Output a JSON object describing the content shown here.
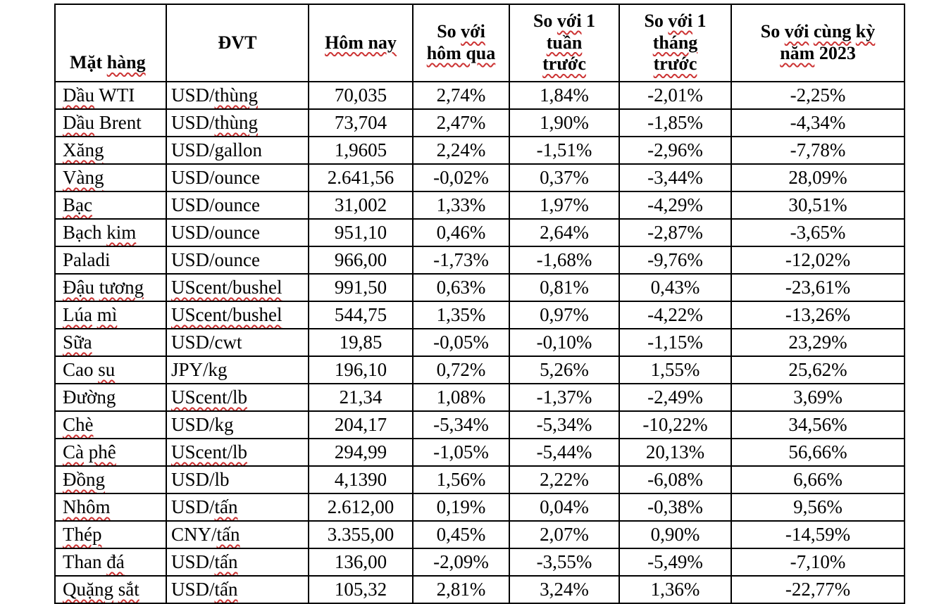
{
  "styles": {
    "squiggle_color": "#cc3333",
    "border_color": "#000000",
    "text_color": "#000000",
    "background": "#ffffff"
  },
  "table": {
    "columns": [
      {
        "id": "item",
        "field": "item",
        "lines": [
          [
            [
              "Mặt ",
              0
            ],
            [
              "hàng",
              1
            ]
          ]
        ]
      },
      {
        "id": "unit",
        "field": "unit",
        "lines": [
          [
            [
              "ĐVT",
              0
            ]
          ]
        ]
      },
      {
        "id": "today",
        "field": "today",
        "lines": [
          [
            [
              "Hôm nay",
              1
            ]
          ]
        ]
      },
      {
        "id": "vs-yesterday",
        "field": "vs_yesterday",
        "lines": [
          [
            [
              "So ",
              0
            ],
            [
              "với",
              1
            ]
          ],
          [
            [
              "hôm qua",
              1
            ]
          ]
        ]
      },
      {
        "id": "vs-week",
        "field": "vs_week",
        "lines": [
          [
            [
              "So ",
              0
            ],
            [
              "với",
              1
            ],
            [
              " 1",
              0
            ]
          ],
          [
            [
              "tuần",
              1
            ]
          ],
          [
            [
              "trước",
              1
            ]
          ]
        ]
      },
      {
        "id": "vs-month",
        "field": "vs_month",
        "lines": [
          [
            [
              "So ",
              0
            ],
            [
              "với",
              1
            ],
            [
              " 1",
              0
            ]
          ],
          [
            [
              "tháng",
              1
            ]
          ],
          [
            [
              "trước",
              1
            ]
          ]
        ]
      },
      {
        "id": "vs-2023",
        "field": "vs_2023",
        "lines": [
          [
            [
              "So ",
              0
            ],
            [
              "với",
              1
            ],
            [
              " ",
              0
            ],
            [
              "cùng",
              1
            ],
            [
              " ",
              0
            ],
            [
              "kỳ",
              1
            ]
          ],
          [
            [
              "năm",
              1
            ],
            [
              " 2023",
              0
            ]
          ]
        ]
      }
    ],
    "rows": [
      {
        "item": [
          [
            "Dầu",
            1
          ],
          [
            " WTI",
            0
          ]
        ],
        "unit": [
          [
            "USD/",
            0
          ],
          [
            "thùng",
            1
          ]
        ],
        "today": "70,035",
        "vs_yesterday": "2,74%",
        "vs_week": "1,84%",
        "vs_month": "-2,01%",
        "vs_2023": "-2,25%"
      },
      {
        "item": [
          [
            "Dầu",
            1
          ],
          [
            " Brent",
            0
          ]
        ],
        "unit": [
          [
            "USD/",
            0
          ],
          [
            "thùng",
            1
          ]
        ],
        "today": "73,704",
        "vs_yesterday": "2,47%",
        "vs_week": "1,90%",
        "vs_month": "-1,85%",
        "vs_2023": "-4,34%"
      },
      {
        "item": [
          [
            "Xăng",
            1
          ]
        ],
        "unit": [
          [
            "USD/gallon",
            0
          ]
        ],
        "today": "1,9605",
        "vs_yesterday": "2,24%",
        "vs_week": "-1,51%",
        "vs_month": "-2,96%",
        "vs_2023": "-7,78%"
      },
      {
        "item": [
          [
            "Vàng",
            1
          ]
        ],
        "unit": [
          [
            "USD/ounce",
            0
          ]
        ],
        "today": "2.641,56",
        "vs_yesterday": "-0,02%",
        "vs_week": "0,37%",
        "vs_month": "-3,44%",
        "vs_2023": "28,09%"
      },
      {
        "item": [
          [
            "Bạc",
            1
          ]
        ],
        "unit": [
          [
            "USD/ounce",
            0
          ]
        ],
        "today": "31,002",
        "vs_yesterday": "1,33%",
        "vs_week": "1,97%",
        "vs_month": "-4,29%",
        "vs_2023": "30,51%"
      },
      {
        "item": [
          [
            "Bạch ",
            0
          ],
          [
            "kim",
            1
          ]
        ],
        "unit": [
          [
            "USD/ounce",
            0
          ]
        ],
        "today": "951,10",
        "vs_yesterday": "0,46%",
        "vs_week": "2,64%",
        "vs_month": "-2,87%",
        "vs_2023": "-3,65%"
      },
      {
        "item": [
          [
            "Paladi",
            0
          ]
        ],
        "unit": [
          [
            "USD/ounce",
            0
          ]
        ],
        "today": "966,00",
        "vs_yesterday": "-1,73%",
        "vs_week": "-1,68%",
        "vs_month": "-9,76%",
        "vs_2023": "-12,02%"
      },
      {
        "item": [
          [
            "Đậu",
            1
          ],
          [
            " ",
            0
          ],
          [
            "tương",
            1
          ]
        ],
        "unit": [
          [
            "UScent/bushel",
            1
          ]
        ],
        "today": "991,50",
        "vs_yesterday": "0,63%",
        "vs_week": "0,81%",
        "vs_month": "0,43%",
        "vs_2023": "-23,61%"
      },
      {
        "item": [
          [
            "Lúa",
            1
          ],
          [
            " ",
            0
          ],
          [
            "mì",
            1
          ]
        ],
        "unit": [
          [
            "UScent/bushel",
            1
          ]
        ],
        "today": "544,75",
        "vs_yesterday": "1,35%",
        "vs_week": "0,97%",
        "vs_month": "-4,22%",
        "vs_2023": "-13,26%"
      },
      {
        "item": [
          [
            "Sữa",
            1
          ]
        ],
        "unit": [
          [
            "USD/cwt",
            0
          ]
        ],
        "today": "19,85",
        "vs_yesterday": "-0,05%",
        "vs_week": "-0,10%",
        "vs_month": "-1,15%",
        "vs_2023": "23,29%"
      },
      {
        "item": [
          [
            "Cao ",
            0
          ],
          [
            "su",
            1
          ]
        ],
        "unit": [
          [
            "JPY/kg",
            0
          ]
        ],
        "today": "196,10",
        "vs_yesterday": "0,72%",
        "vs_week": "5,26%",
        "vs_month": "1,55%",
        "vs_2023": "25,62%"
      },
      {
        "item": [
          [
            "Đường",
            0
          ]
        ],
        "unit": [
          [
            "UScent/lb",
            1
          ]
        ],
        "today": "21,34",
        "vs_yesterday": "1,08%",
        "vs_week": "-1,37%",
        "vs_month": "-2,49%",
        "vs_2023": "3,69%"
      },
      {
        "item": [
          [
            "Chè",
            1
          ]
        ],
        "unit": [
          [
            "USD/kg",
            0
          ]
        ],
        "today": "204,17",
        "vs_yesterday": "-5,34%",
        "vs_week": "-5,34%",
        "vs_month": "-10,22%",
        "vs_2023": "34,56%"
      },
      {
        "item": [
          [
            "Cà",
            1
          ],
          [
            " ",
            0
          ],
          [
            "phê",
            1
          ]
        ],
        "unit": [
          [
            "UScent/lb",
            1
          ]
        ],
        "today": "294,99",
        "vs_yesterday": "-1,05%",
        "vs_week": "-5,44%",
        "vs_month": "20,13%",
        "vs_2023": "56,66%"
      },
      {
        "item": [
          [
            "Đồng",
            1
          ]
        ],
        "unit": [
          [
            "USD/lb",
            0
          ]
        ],
        "today": "4,1390",
        "vs_yesterday": "1,56%",
        "vs_week": "2,22%",
        "vs_month": "-6,08%",
        "vs_2023": "6,66%"
      },
      {
        "item": [
          [
            "Nhôm",
            1
          ]
        ],
        "unit": [
          [
            "USD/",
            0
          ],
          [
            "tấn",
            1
          ]
        ],
        "today": "2.612,00",
        "vs_yesterday": "0,19%",
        "vs_week": "0,04%",
        "vs_month": "-0,38%",
        "vs_2023": "9,56%"
      },
      {
        "item": [
          [
            "Thép",
            1
          ]
        ],
        "unit": [
          [
            "CNY/",
            0
          ],
          [
            "tấn",
            1
          ]
        ],
        "today": "3.355,00",
        "vs_yesterday": "0,45%",
        "vs_week": "2,07%",
        "vs_month": "0,90%",
        "vs_2023": "-14,59%"
      },
      {
        "item": [
          [
            "Than ",
            0
          ],
          [
            "đá",
            1
          ]
        ],
        "unit": [
          [
            "USD/",
            0
          ],
          [
            "tấn",
            1
          ]
        ],
        "today": "136,00",
        "vs_yesterday": "-2,09%",
        "vs_week": "-3,55%",
        "vs_month": "-5,49%",
        "vs_2023": "-7,10%"
      },
      {
        "item": [
          [
            "Quặng",
            1
          ],
          [
            " ",
            0
          ],
          [
            "sắt",
            1
          ]
        ],
        "unit": [
          [
            "USD/",
            0
          ],
          [
            "tấn",
            1
          ]
        ],
        "today": "105,32",
        "vs_yesterday": "2,81%",
        "vs_week": "3,24%",
        "vs_month": "1,36%",
        "vs_2023": "-22,77%"
      }
    ]
  }
}
